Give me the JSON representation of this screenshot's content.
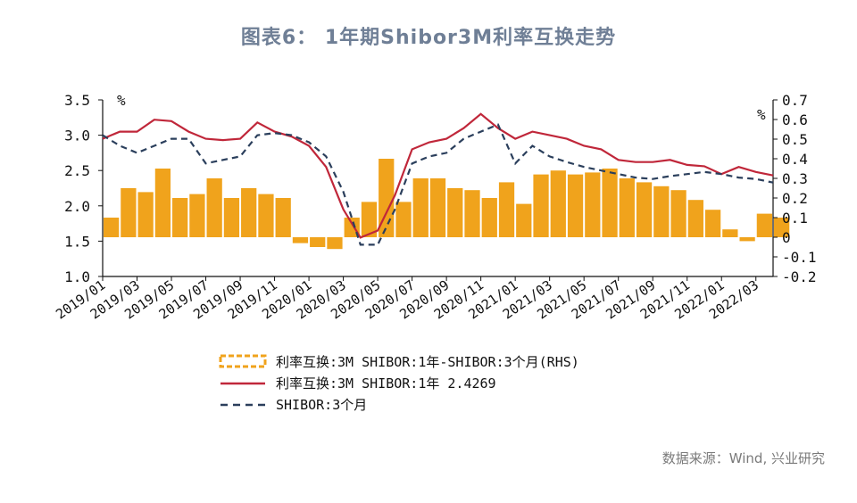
{
  "title": "图表6： 1年期Shibor3M利率互换走势",
  "source": "数据来源：Wind, 兴业研究",
  "colors": {
    "swap": "#c0273a",
    "shibor": "#2b3f5c",
    "spread": "#f0a31c"
  },
  "chart_data": {
    "type": "line",
    "left_axis": {
      "unit": "%",
      "ylim": [
        1.0,
        3.5
      ],
      "ticks": [
        "3.5",
        "3.0",
        "2.5",
        "2.0",
        "1.5",
        "1.0"
      ]
    },
    "right_axis": {
      "unit": "%",
      "ylim": [
        -0.2,
        0.7
      ],
      "ticks": [
        "0.7",
        "0.6",
        "0.5",
        "0.4",
        "0.3",
        "0.2",
        "0.1",
        "0",
        "-0.1",
        "-0.2"
      ]
    },
    "x_ticks": [
      "2019/01",
      "2019/03",
      "2019/05",
      "2019/07",
      "2019/09",
      "2019/11",
      "2020/01",
      "2020/03",
      "2020/05",
      "2020/07",
      "2020/09",
      "2020/11",
      "2021/01",
      "2021/03",
      "2021/05",
      "2021/07",
      "2021/09",
      "2021/11",
      "2022/01",
      "2022/03"
    ],
    "x_range": [
      "2019/01",
      "2022/04"
    ],
    "series": [
      {
        "name": "利率互换:3M SHIBOR:1年-SHIBOR:3个月(RHS)",
        "type": "bar",
        "axis": "right",
        "x": [
          "2019/01",
          "2019/02",
          "2019/03",
          "2019/04",
          "2019/05",
          "2019/06",
          "2019/07",
          "2019/08",
          "2019/09",
          "2019/10",
          "2019/11",
          "2019/12",
          "2020/01",
          "2020/02",
          "2020/03",
          "2020/04",
          "2020/05",
          "2020/06",
          "2020/07",
          "2020/08",
          "2020/09",
          "2020/10",
          "2020/11",
          "2020/12",
          "2021/01",
          "2021/02",
          "2021/03",
          "2021/04",
          "2021/05",
          "2021/06",
          "2021/07",
          "2021/08",
          "2021/09",
          "2021/10",
          "2021/11",
          "2021/12",
          "2022/01",
          "2022/02",
          "2022/03",
          "2022/04"
        ],
        "values": [
          0.1,
          0.25,
          0.23,
          0.35,
          0.2,
          0.22,
          0.3,
          0.2,
          0.25,
          0.22,
          0.2,
          -0.03,
          -0.05,
          -0.06,
          0.1,
          0.18,
          0.4,
          0.18,
          0.3,
          0.3,
          0.25,
          0.24,
          0.2,
          0.28,
          0.17,
          0.32,
          0.34,
          0.32,
          0.33,
          0.35,
          0.3,
          0.28,
          0.26,
          0.24,
          0.19,
          0.14,
          0.04,
          -0.02,
          0.12,
          0.1
        ]
      },
      {
        "name": "利率互换:3M SHIBOR:1年 2.4269",
        "type": "line",
        "axis": "left",
        "x": [
          "2019/01",
          "2019/02",
          "2019/03",
          "2019/04",
          "2019/05",
          "2019/06",
          "2019/07",
          "2019/08",
          "2019/09",
          "2019/10",
          "2019/11",
          "2019/12",
          "2020/01",
          "2020/02",
          "2020/03",
          "2020/04",
          "2020/05",
          "2020/06",
          "2020/07",
          "2020/08",
          "2020/09",
          "2020/10",
          "2020/11",
          "2020/12",
          "2021/01",
          "2021/02",
          "2021/03",
          "2021/04",
          "2021/05",
          "2021/06",
          "2021/07",
          "2021/08",
          "2021/09",
          "2021/10",
          "2021/11",
          "2021/12",
          "2022/01",
          "2022/02",
          "2022/03",
          "2022/04"
        ],
        "values": [
          2.95,
          3.05,
          3.05,
          3.22,
          3.2,
          3.05,
          2.95,
          2.93,
          2.95,
          3.18,
          3.05,
          2.98,
          2.85,
          2.55,
          1.95,
          1.55,
          1.65,
          2.15,
          2.8,
          2.9,
          2.95,
          3.1,
          3.3,
          3.1,
          2.95,
          3.05,
          3.0,
          2.95,
          2.85,
          2.8,
          2.65,
          2.62,
          2.62,
          2.65,
          2.58,
          2.56,
          2.45,
          2.55,
          2.48,
          2.43
        ]
      },
      {
        "name": "SHIBOR:3个月",
        "type": "line",
        "axis": "left",
        "x": [
          "2019/01",
          "2019/02",
          "2019/03",
          "2019/04",
          "2019/05",
          "2019/06",
          "2019/07",
          "2019/08",
          "2019/09",
          "2019/10",
          "2019/11",
          "2019/12",
          "2020/01",
          "2020/02",
          "2020/03",
          "2020/04",
          "2020/05",
          "2020/06",
          "2020/07",
          "2020/08",
          "2020/09",
          "2020/10",
          "2020/11",
          "2020/12",
          "2021/01",
          "2021/02",
          "2021/03",
          "2021/04",
          "2021/05",
          "2021/06",
          "2021/07",
          "2021/08",
          "2021/09",
          "2021/10",
          "2021/11",
          "2021/12",
          "2022/01",
          "2022/02",
          "2022/03",
          "2022/04"
        ],
        "values": [
          3.0,
          2.85,
          2.75,
          2.85,
          2.95,
          2.95,
          2.6,
          2.65,
          2.7,
          3.0,
          3.03,
          3.0,
          2.9,
          2.7,
          2.2,
          1.45,
          1.45,
          1.95,
          2.6,
          2.7,
          2.75,
          2.95,
          3.05,
          3.15,
          2.6,
          2.85,
          2.7,
          2.62,
          2.55,
          2.5,
          2.45,
          2.4,
          2.38,
          2.42,
          2.45,
          2.48,
          2.45,
          2.4,
          2.38,
          2.33
        ]
      }
    ],
    "legend": [
      "利率互换:3M SHIBOR:1年-SHIBOR:3个月(RHS)",
      "利率互换:3M SHIBOR:1年 2.4269",
      "SHIBOR:3个月"
    ],
    "legend_position": "bottom"
  }
}
